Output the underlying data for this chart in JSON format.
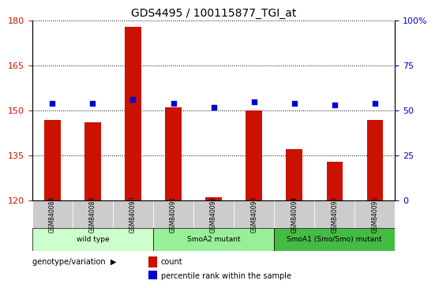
{
  "title": "GDS4495 / 100115877_TGI_at",
  "samples": [
    "GSM840088",
    "GSM840089",
    "GSM840090",
    "GSM840091",
    "GSM840092",
    "GSM840093",
    "GSM840094",
    "GSM840095",
    "GSM840096"
  ],
  "counts": [
    147,
    146,
    178,
    151,
    121,
    150,
    137,
    133,
    147
  ],
  "percentiles": [
    54,
    54,
    56,
    54,
    52,
    55,
    54,
    53,
    54
  ],
  "ylim_left": [
    120,
    180
  ],
  "yticks_left": [
    120,
    135,
    150,
    165,
    180
  ],
  "ylim_right": [
    0,
    100
  ],
  "yticks_right": [
    0,
    25,
    50,
    75,
    100
  ],
  "groups": [
    {
      "label": "wild type",
      "indices": [
        0,
        1,
        2
      ],
      "color": "#ccffcc"
    },
    {
      "label": "SmoA2 mutant",
      "indices": [
        3,
        4,
        5
      ],
      "color": "#99ee99"
    },
    {
      "label": "SmoA1 (Smo/Smo) mutant",
      "indices": [
        6,
        7,
        8
      ],
      "color": "#44bb44"
    }
  ],
  "bar_color": "#cc1100",
  "dot_color": "#0000cc",
  "bar_width": 0.4,
  "grid_color": "#000000",
  "grid_style": "dotted",
  "xlabel_color": "#555555",
  "left_axis_color": "#cc1100",
  "right_axis_color": "#0000cc",
  "legend_count_label": "count",
  "legend_pct_label": "percentile rank within the sample",
  "genotype_label": "genotype/variation"
}
